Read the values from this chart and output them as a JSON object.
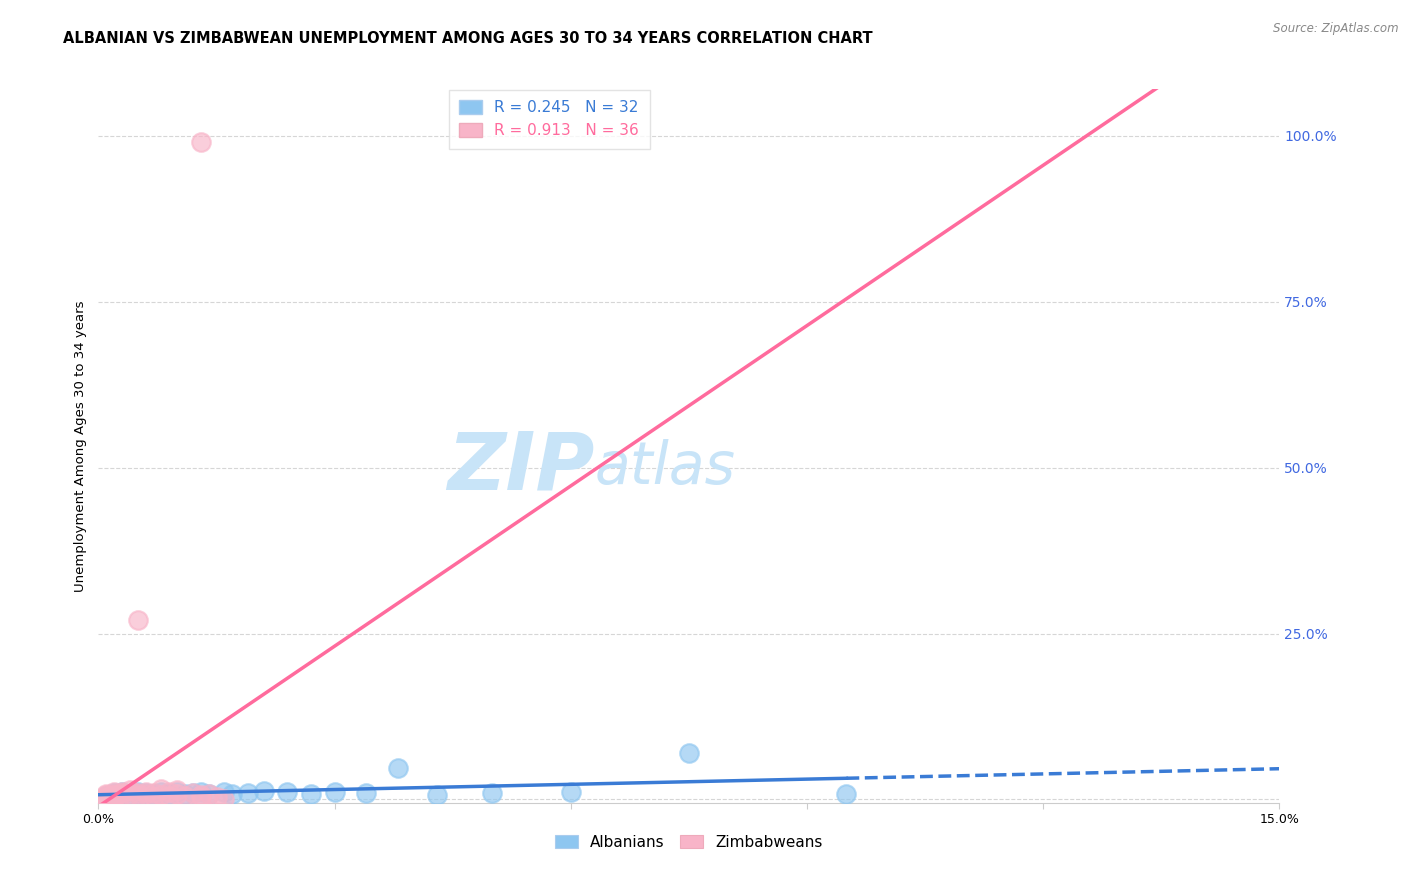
{
  "title": "ALBANIAN VS ZIMBABWEAN UNEMPLOYMENT AMONG AGES 30 TO 34 YEARS CORRELATION CHART",
  "source": "Source: ZipAtlas.com",
  "ylabel": "Unemployment Among Ages 30 to 34 years",
  "xlim": [
    0.0,
    0.15
  ],
  "ylim": [
    -0.005,
    1.07
  ],
  "yticks_right": [
    0.0,
    0.25,
    0.5,
    0.75,
    1.0
  ],
  "yticklabels_right": [
    "",
    "25.0%",
    "50.0%",
    "75.0%",
    "100.0%"
  ],
  "albanian_R": 0.245,
  "albanian_N": 32,
  "zimbabwean_R": 0.913,
  "zimbabwean_N": 36,
  "albanian_color": "#8EC6F0",
  "zimbabwean_color": "#F8B4C8",
  "albanian_line_color": "#3A7BD5",
  "zimbabwean_line_color": "#FF6B9D",
  "watermark_zip": "ZIP",
  "watermark_atlas": "atlas",
  "watermark_color": "#C8E4F8",
  "title_fontsize": 10.5,
  "axis_label_fontsize": 9.5,
  "tick_fontsize": 9,
  "legend_fontsize": 11,
  "albanian_x": [
    0.001,
    0.002,
    0.002,
    0.003,
    0.003,
    0.004,
    0.005,
    0.005,
    0.006,
    0.006,
    0.007,
    0.008,
    0.009,
    0.01,
    0.011,
    0.012,
    0.013,
    0.014,
    0.016,
    0.017,
    0.019,
    0.021,
    0.024,
    0.027,
    0.03,
    0.034,
    0.038,
    0.043,
    0.05,
    0.06,
    0.075,
    0.095
  ],
  "albanian_y": [
    0.005,
    0.007,
    0.01,
    0.008,
    0.012,
    0.006,
    0.009,
    0.011,
    0.007,
    0.01,
    0.008,
    0.012,
    0.009,
    0.011,
    0.008,
    0.01,
    0.012,
    0.009,
    0.011,
    0.008,
    0.01,
    0.013,
    0.011,
    0.009,
    0.012,
    0.01,
    0.048,
    0.007,
    0.01,
    0.012,
    0.07,
    0.009
  ],
  "zimbabwean_x": [
    0.001,
    0.001,
    0.001,
    0.001,
    0.002,
    0.002,
    0.002,
    0.002,
    0.003,
    0.003,
    0.003,
    0.004,
    0.004,
    0.005,
    0.005,
    0.005,
    0.006,
    0.006,
    0.007,
    0.007,
    0.008,
    0.008,
    0.009,
    0.009,
    0.01,
    0.01,
    0.011,
    0.012,
    0.013,
    0.014,
    0.015,
    0.016,
    0.013,
    0.002,
    0.002,
    0.013
  ],
  "zimbabwean_y": [
    0.002,
    0.004,
    0.006,
    0.008,
    0.005,
    0.007,
    0.009,
    0.011,
    0.006,
    0.01,
    0.012,
    0.008,
    0.014,
    0.006,
    0.01,
    0.27,
    0.008,
    0.012,
    0.004,
    0.01,
    0.006,
    0.016,
    0.005,
    0.012,
    0.008,
    0.014,
    0.005,
    0.01,
    0.006,
    0.008,
    0.004,
    0.001,
    0.003,
    0.001,
    0.002,
    0.99
  ],
  "grid_color": "#CCCCCC",
  "background_color": "#FFFFFF",
  "right_tick_color": "#4169E1",
  "fig_width": 14.06,
  "fig_height": 8.92,
  "dpi": 100,
  "alb_line_x_solid_end": 0.095,
  "alb_line_x_dash_end": 0.15,
  "alb_line_slope": 0.003,
  "alb_line_intercept": 0.003,
  "zim_line_x_start": 0.0,
  "zim_line_x_end": 0.135,
  "zim_line_slope": 7.5,
  "zim_line_intercept": -0.01
}
